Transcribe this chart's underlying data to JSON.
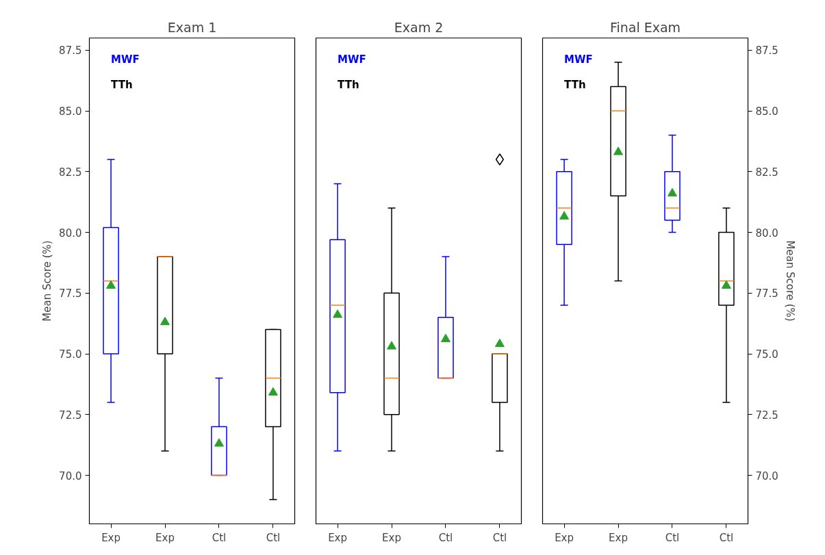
{
  "chart_data": [
    {
      "type": "box",
      "title": "Exam 1",
      "ylabel": "Mean Score (%)",
      "categories": [
        "Exp",
        "Exp",
        "Ctl",
        "Ctl"
      ],
      "ylim": [
        68,
        88
      ],
      "yticks": [
        {
          "value": 70,
          "label": "70.0"
        },
        72.5,
        {
          "value": 75,
          "label": "75.0"
        },
        77.5,
        {
          "value": 80,
          "label": "80.0"
        },
        82.5,
        {
          "value": 85,
          "label": "85.0"
        },
        87.5
      ],
      "grid": false,
      "legend": "top left",
      "marker": "triangle",
      "series": [
        {
          "name": "MWF",
          "color": "#0000ff",
          "boxes": [
            {
              "low": 73,
              "q1": 75,
              "median": 78,
              "q3": 80.2,
              "high": 83,
              "mean": 77.8
            },
            null,
            {
              "low": 70,
              "q1": 70,
              "median": 70,
              "q3": 72,
              "high": 74,
              "mean": 71.3
            },
            null
          ]
        },
        {
          "name": "TTh",
          "color": "#000000",
          "boxes": [
            null,
            {
              "low": 71,
              "q1": 75,
              "median": 79,
              "q3": 79,
              "high": 79,
              "mean": 76.3
            },
            null,
            {
              "low": 69,
              "q1": 72,
              "median": 74,
              "q3": 76,
              "high": 76,
              "mean": 73.4
            }
          ]
        }
      ]
    },
    {
      "type": "box",
      "title": "Exam 2",
      "categories": [
        "Exp",
        "Exp",
        "Ctl",
        "Ctl"
      ],
      "ylim": [
        68,
        88
      ],
      "tick_labels": "x",
      "grid": false,
      "legend": "top left",
      "marker": "triangle",
      "series": [
        {
          "name": "MWF",
          "color": "#0000ff",
          "boxes": [
            {
              "low": 71,
              "q1": 73.4,
              "median": 77,
              "q3": 79.7,
              "high": 82,
              "mean": 76.6
            },
            null,
            {
              "low": 74,
              "q1": 74,
              "median": 74,
              "q3": 76.5,
              "high": 79,
              "mean": 75.6
            },
            null
          ]
        },
        {
          "name": "TTh",
          "color": "#000000",
          "boxes": [
            null,
            {
              "low": 71,
              "q1": 72.5,
              "median": 74,
              "q3": 77.5,
              "high": 81,
              "mean": 75.3
            },
            null,
            {
              "low": 71,
              "q1": 73,
              "median": 75,
              "q3": 75,
              "high": 75,
              "mean": 75.4,
              "outliers": [
                83
              ]
            }
          ]
        }
      ]
    },
    {
      "type": "box",
      "title": "Final Exam",
      "y2label": "Mean Score (%)",
      "categories": [
        "Exp",
        "Exp",
        "Ctl",
        "Ctl"
      ],
      "y2lim": [
        68,
        88
      ],
      "y2ticks": [
        {
          "value": 70,
          "label": "70.0"
        },
        72.5,
        {
          "value": 75,
          "label": "75.0"
        },
        77.5,
        {
          "value": 80,
          "label": "80.0"
        },
        82.5,
        {
          "value": 85,
          "label": "85.0"
        },
        87.5
      ],
      "grid": false,
      "legend": "top left",
      "marker": "triangle",
      "series": [
        {
          "name": "MWF",
          "color": "#0000ff",
          "axis": "y2",
          "boxes": [
            {
              "low": 77,
              "q1": 79.5,
              "median": 81,
              "q3": 82.5,
              "high": 83,
              "mean": 80.65
            },
            null,
            {
              "low": 80,
              "q1": 80.5,
              "median": 81,
              "q3": 82.5,
              "high": 84,
              "mean": 81.6
            },
            null
          ]
        },
        {
          "name": "TTh",
          "color": "#000000",
          "axis": "y2",
          "boxes": [
            null,
            {
              "low": 78,
              "q1": 81.5,
              "median": 85,
              "q3": 86,
              "high": 87,
              "mean": 83.3
            },
            null,
            {
              "low": 73,
              "q1": 77,
              "median": 78,
              "q3": 80,
              "high": 81,
              "mean": 77.8
            }
          ]
        }
      ]
    }
  ]
}
